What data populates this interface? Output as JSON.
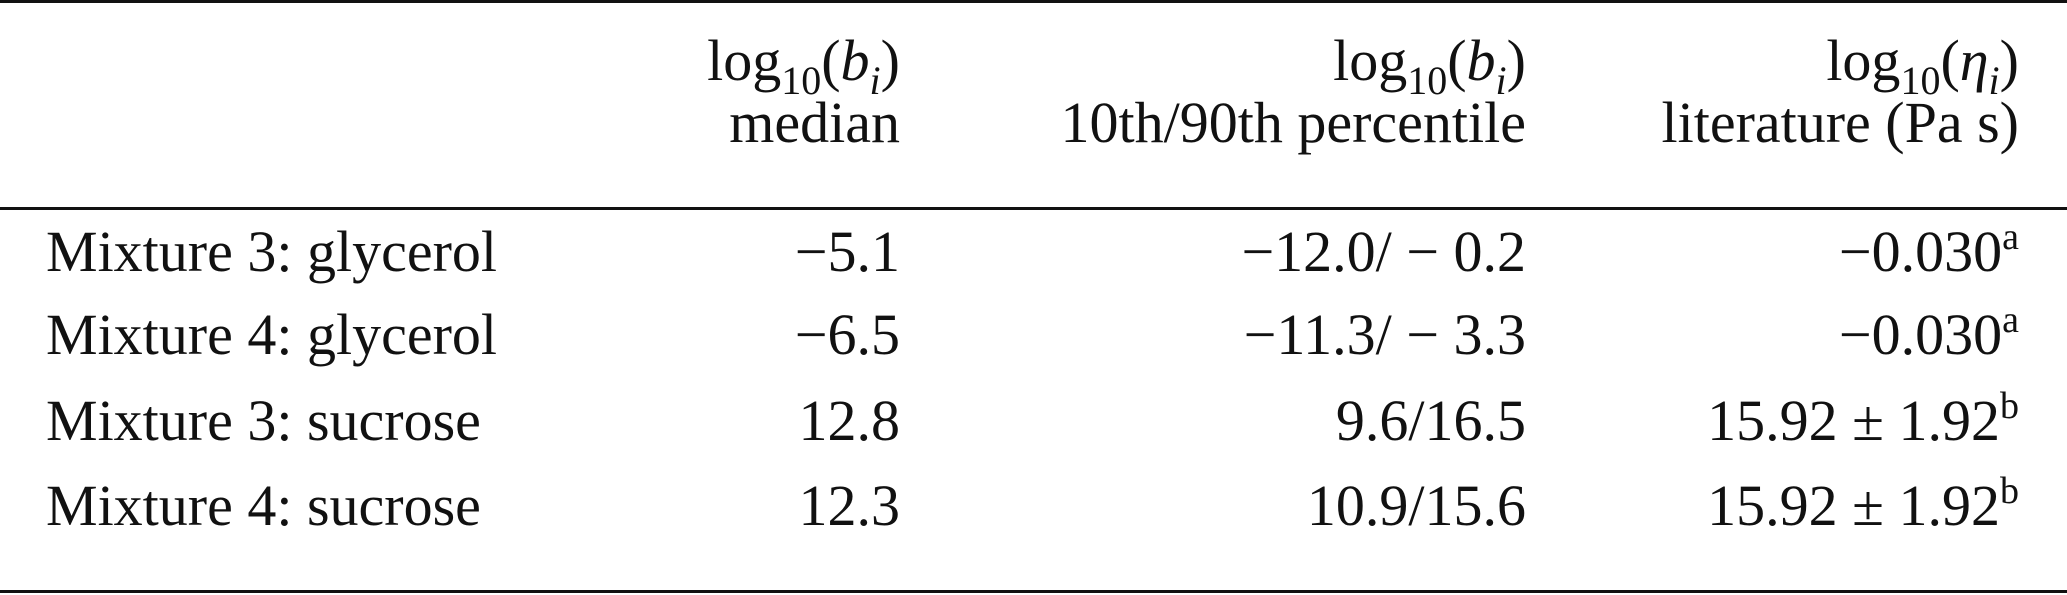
{
  "table": {
    "header": [
      {
        "label": [
          {
            "t": "log"
          },
          {
            "t": "10",
            "sub": true
          },
          {
            "t": "("
          },
          {
            "t": "b",
            "italic": true
          },
          {
            "t": "i",
            "sub": true,
            "italic": true
          },
          {
            "t": ")"
          }
        ],
        "caption": "median"
      },
      {
        "label": [
          {
            "t": "log"
          },
          {
            "t": "10",
            "sub": true
          },
          {
            "t": "("
          },
          {
            "t": "b",
            "italic": true
          },
          {
            "t": "i",
            "sub": true,
            "italic": true
          },
          {
            "t": ")"
          }
        ],
        "caption": "10th/90th percentile"
      },
      {
        "label": [
          {
            "t": "log"
          },
          {
            "t": "10",
            "sub": true
          },
          {
            "t": "("
          },
          {
            "t": "η",
            "italic": true
          },
          {
            "t": "i",
            "sub": true,
            "italic": true
          },
          {
            "t": ")"
          }
        ],
        "caption": "literature (Pa s)"
      }
    ],
    "rows": [
      {
        "name": "Mixture 3: glycerol",
        "median": "−5.1",
        "percentile": "−12.0/ − 0.2",
        "literature": "−0.030",
        "note": "a"
      },
      {
        "name": "Mixture 4: glycerol",
        "median": "−6.5",
        "percentile": "−11.3/ − 3.3",
        "literature": "−0.030",
        "note": "a"
      },
      {
        "name": "Mixture 3: sucrose",
        "median": "12.8",
        "percentile": "9.6/16.5",
        "literature": "15.92 ± 1.92",
        "note": "b"
      },
      {
        "name": "Mixture 4: sucrose",
        "median": "12.3",
        "percentile": "10.9/15.6",
        "literature": "15.92 ± 1.92",
        "note": "b"
      }
    ]
  }
}
